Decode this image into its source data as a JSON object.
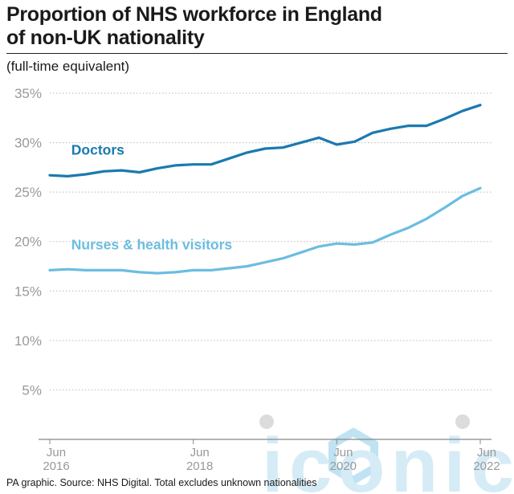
{
  "title_line1": "Proportion of NHS workforce in England",
  "title_line2": "of non-UK nationality",
  "subtitle": "(full-time equivalent)",
  "source": "PA graphic. Source: NHS Digital. Total excludes unknown nationalities",
  "watermark": "iconic",
  "colors": {
    "doctors": "#1a7aaf",
    "nurses": "#6bbde0",
    "grid": "#b9b9b9",
    "axis": "#888888"
  },
  "chart_data": {
    "type": "line",
    "ylim": [
      0,
      35
    ],
    "yticks": [
      5,
      10,
      15,
      20,
      25,
      30,
      35
    ],
    "ytick_labels": [
      "5%",
      "10%",
      "15%",
      "20%",
      "25%",
      "30%",
      "35%"
    ],
    "xlim": [
      2016.5,
      2022.5
    ],
    "xticks": [
      {
        "value": 2016.5,
        "label_line1": "Jun",
        "label_line2": "2016"
      },
      {
        "value": 2018.5,
        "label_line1": "Jun",
        "label_line2": "2018"
      },
      {
        "value": 2020.5,
        "label_line1": "Jun",
        "label_line2": "2020"
      },
      {
        "value": 2022.5,
        "label_line1": "Jun",
        "label_line2": "2022"
      }
    ],
    "series": [
      {
        "name": "Doctors",
        "color": "#1a7aaf",
        "x": [
          2016.5,
          2016.75,
          2017.0,
          2017.25,
          2017.5,
          2017.75,
          2018.0,
          2018.25,
          2018.5,
          2018.75,
          2019.0,
          2019.25,
          2019.5,
          2019.75,
          2020.0,
          2020.25,
          2020.5,
          2020.75,
          2021.0,
          2021.25,
          2021.5,
          2021.75,
          2022.0,
          2022.25,
          2022.5
        ],
        "values": [
          26.7,
          26.6,
          26.8,
          27.1,
          27.2,
          27.0,
          27.4,
          27.7,
          27.8,
          27.8,
          28.4,
          29.0,
          29.4,
          29.5,
          30.0,
          30.5,
          29.8,
          30.1,
          31.0,
          31.4,
          31.7,
          31.7,
          32.4,
          33.2,
          33.8
        ]
      },
      {
        "name": "Nurses & health visitors",
        "color": "#6bbde0",
        "x": [
          2016.5,
          2016.75,
          2017.0,
          2017.25,
          2017.5,
          2017.75,
          2018.0,
          2018.25,
          2018.5,
          2018.75,
          2019.0,
          2019.25,
          2019.5,
          2019.75,
          2020.0,
          2020.25,
          2020.5,
          2020.75,
          2021.0,
          2021.25,
          2021.5,
          2021.75,
          2022.0,
          2022.25,
          2022.5
        ],
        "values": [
          17.1,
          17.2,
          17.1,
          17.1,
          17.1,
          16.9,
          16.8,
          16.9,
          17.1,
          17.1,
          17.3,
          17.5,
          17.9,
          18.3,
          18.9,
          19.5,
          19.8,
          19.7,
          19.9,
          20.7,
          21.4,
          22.3,
          23.4,
          24.6,
          25.4
        ]
      }
    ],
    "series_label_anchor_x": [
      2016.8,
      2016.8
    ],
    "series_label_anchor_y": [
      28.8,
      19.2
    ],
    "grid": true,
    "grid_style": "dotted-horizontal"
  }
}
